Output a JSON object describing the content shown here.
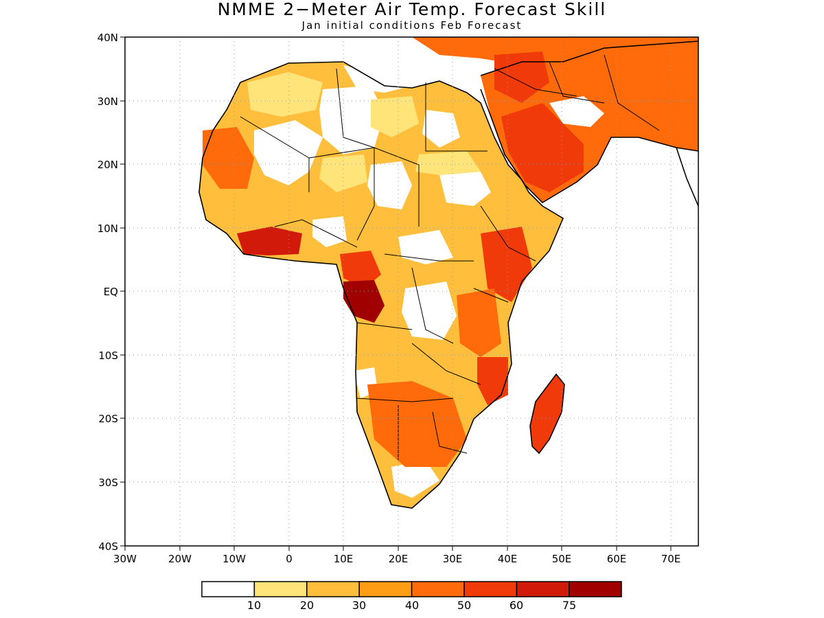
{
  "title": "NMME 2−Meter Air Temp. Forecast Skill",
  "subtitle": "Jan initial conditions  Feb Forecast",
  "map": {
    "region": "Africa and Arabian Peninsula",
    "lon_range": [
      -30,
      75
    ],
    "lat_range": [
      -40,
      40
    ],
    "grid": "dotted",
    "x_ticks": [
      "30W",
      "20W",
      "10W",
      "0",
      "10E",
      "20E",
      "30E",
      "40E",
      "50E",
      "60E",
      "70E"
    ],
    "y_ticks": [
      "40N",
      "30N",
      "20N",
      "10N",
      "EQ",
      "10S",
      "20S",
      "30S",
      "40S"
    ]
  },
  "colorbar": {
    "colors": [
      "#ffffff",
      "#ffe47a",
      "#ffbf3c",
      "#ff9e14",
      "#ff6a0a",
      "#f03a0a",
      "#d21a0a",
      "#a00000"
    ],
    "labels": [
      "10",
      "20",
      "30",
      "40",
      "50",
      "60",
      "75"
    ]
  }
}
